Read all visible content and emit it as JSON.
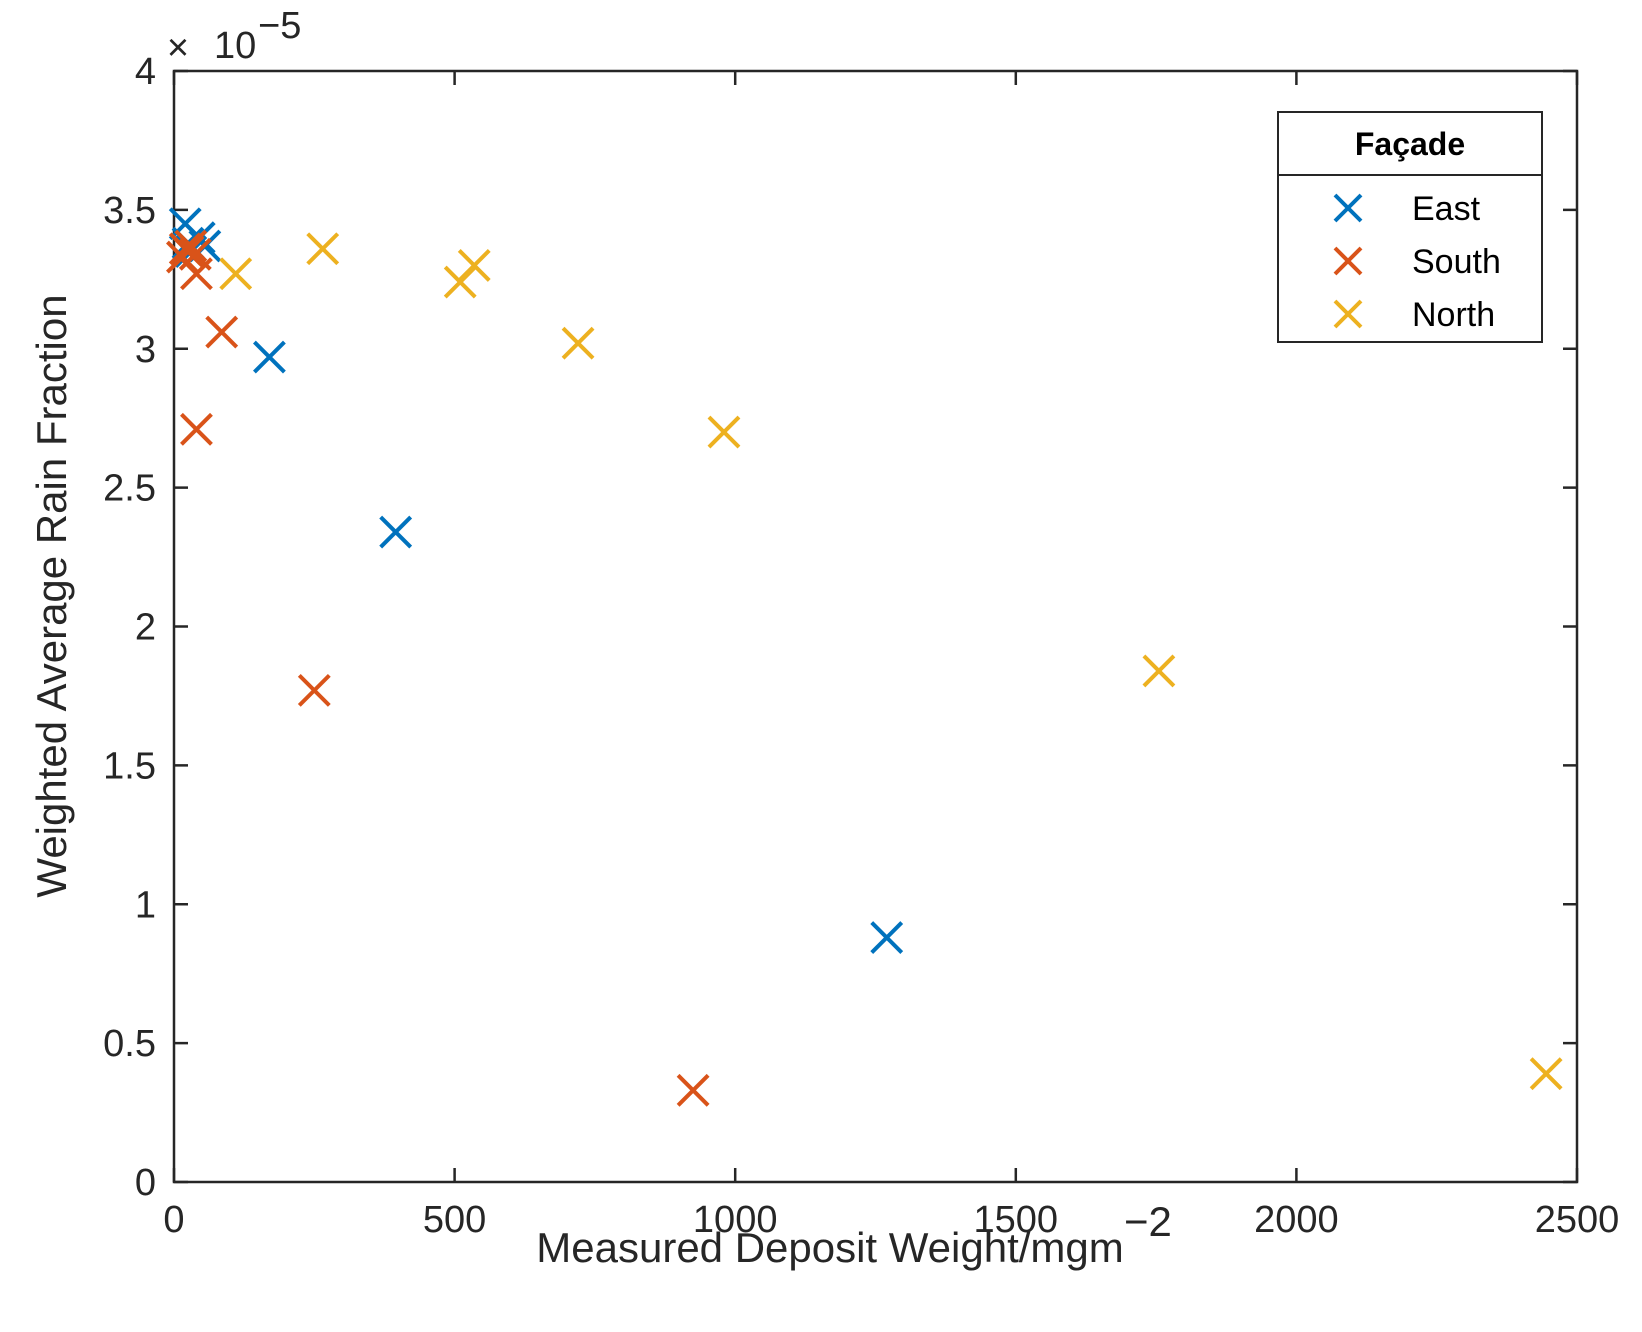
{
  "chart_data": {
    "type": "scatter",
    "title": "",
    "xlabel": "Measured Deposit Weight/mgm",
    "xlabel_superscript": "−2",
    "ylabel": "Weighted Average Rain Fraction",
    "y_exponent_prefix": "×",
    "y_exponent_base": "10",
    "y_exponent_power": "−5",
    "xlim": [
      0,
      2500
    ],
    "ylim": [
      0,
      4
    ],
    "xticks": [
      0,
      500,
      1000,
      1500,
      2000,
      2500
    ],
    "yticks": [
      0,
      0.5,
      1,
      1.5,
      2,
      2.5,
      3,
      3.5,
      4
    ],
    "xtick_labels": [
      "0",
      "500",
      "1000",
      "1500",
      "2000",
      "2500"
    ],
    "ytick_labels": [
      "0",
      "0.5",
      "1",
      "1.5",
      "2",
      "2.5",
      "3",
      "3.5",
      "4"
    ],
    "marker": "x",
    "legend": {
      "title": "Façade",
      "position": "top-right"
    },
    "series": [
      {
        "name": "East",
        "color": "#0072BD",
        "points": [
          [
            20,
            3.45
          ],
          [
            25,
            3.38
          ],
          [
            30,
            3.35
          ],
          [
            45,
            3.4
          ],
          [
            55,
            3.37
          ],
          [
            170,
            2.97
          ],
          [
            395,
            2.34
          ],
          [
            1270,
            0.88
          ]
        ]
      },
      {
        "name": "South",
        "color": "#D95319",
        "points": [
          [
            15,
            3.33
          ],
          [
            20,
            3.36
          ],
          [
            25,
            3.35
          ],
          [
            30,
            3.37
          ],
          [
            38,
            3.34
          ],
          [
            40,
            3.27
          ],
          [
            85,
            3.06
          ],
          [
            40,
            2.71
          ],
          [
            250,
            1.77
          ],
          [
            925,
            0.33
          ]
        ]
      },
      {
        "name": "North",
        "color": "#EDB120",
        "points": [
          [
            110,
            3.27
          ],
          [
            265,
            3.36
          ],
          [
            510,
            3.24
          ],
          [
            535,
            3.3
          ],
          [
            720,
            3.02
          ],
          [
            980,
            2.7
          ],
          [
            1755,
            1.84
          ],
          [
            2445,
            0.39
          ]
        ]
      }
    ]
  }
}
